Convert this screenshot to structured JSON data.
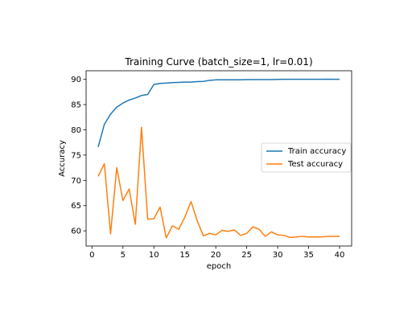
{
  "chart_data": {
    "type": "line",
    "title": "Training Curve (batch_size=1, lr=0.01)",
    "xlabel": "epoch",
    "ylabel": "Accuracy",
    "xlim": [
      -0.95,
      41.95
    ],
    "ylim": [
      57.0,
      91.7
    ],
    "x_ticks": [
      0,
      5,
      10,
      15,
      20,
      25,
      30,
      35,
      40
    ],
    "y_ticks": [
      60,
      65,
      70,
      75,
      80,
      85,
      90
    ],
    "grid": false,
    "legend_position": "center-right",
    "x": [
      1,
      2,
      3,
      4,
      5,
      6,
      7,
      8,
      9,
      10,
      11,
      12,
      13,
      14,
      15,
      16,
      17,
      18,
      19,
      20,
      21,
      22,
      23,
      24,
      25,
      26,
      27,
      28,
      29,
      30,
      31,
      32,
      33,
      34,
      35,
      36,
      37,
      38,
      39,
      40
    ],
    "series": [
      {
        "name": "Train accuracy",
        "color": "#1f77b4",
        "values": [
          76.6,
          81.1,
          83.1,
          84.5,
          85.3,
          85.9,
          86.3,
          86.8,
          87.0,
          89.0,
          89.2,
          89.25,
          89.35,
          89.4,
          89.45,
          89.45,
          89.55,
          89.6,
          89.8,
          89.9,
          89.9,
          89.9,
          89.9,
          89.9,
          89.95,
          89.95,
          89.95,
          89.95,
          89.95,
          89.98,
          90.0,
          90.0,
          90.0,
          90.0,
          90.0,
          90.0,
          90.0,
          90.02,
          90.0,
          90.0
        ]
      },
      {
        "name": "Test accuracy",
        "color": "#ff7f0e",
        "values": [
          70.8,
          73.3,
          59.4,
          72.5,
          66.0,
          68.3,
          61.3,
          80.5,
          62.3,
          62.4,
          64.7,
          58.6,
          61.0,
          60.3,
          62.7,
          65.8,
          62.0,
          59.0,
          59.5,
          59.2,
          60.1,
          59.9,
          60.2,
          59.1,
          59.5,
          60.8,
          60.3,
          58.9,
          59.8,
          59.2,
          59.1,
          58.7,
          58.8,
          58.9,
          58.8,
          58.8,
          58.8,
          58.9,
          58.9,
          58.9
        ]
      }
    ]
  }
}
